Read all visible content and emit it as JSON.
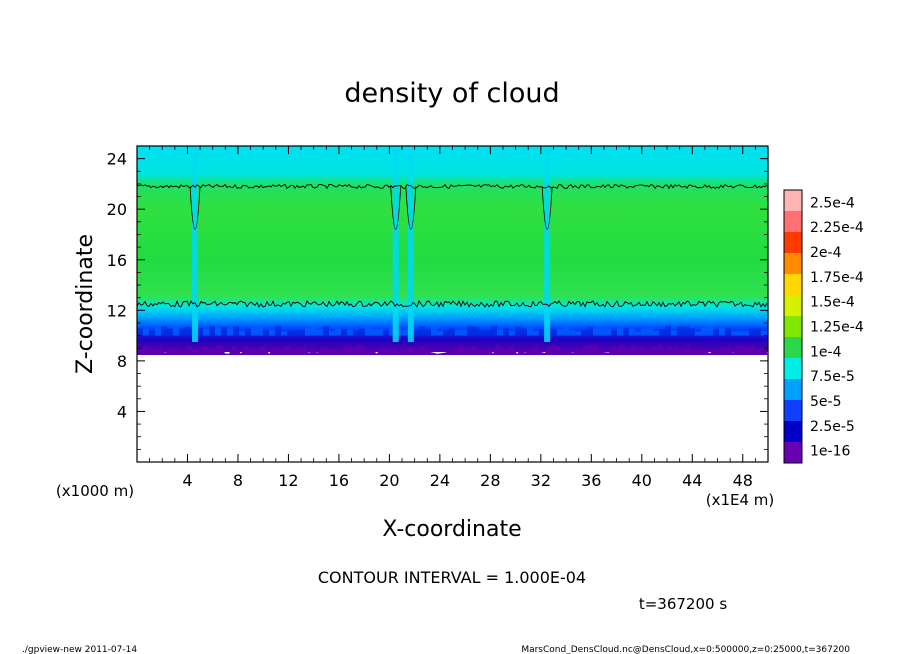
{
  "chart_data": {
    "type": "heatmap",
    "title": "density of cloud",
    "xlabel": "X-coordinate",
    "ylabel": "Z-coordinate",
    "x_unit_label": "(x1E4 m)",
    "y_unit_label": "(x1000 m)",
    "xlim": [
      0,
      50
    ],
    "ylim": [
      0,
      25
    ],
    "x_ticks": [
      4,
      8,
      12,
      16,
      20,
      24,
      28,
      32,
      36,
      40,
      44,
      48
    ],
    "y_ticks": [
      4,
      8,
      12,
      16,
      20,
      24
    ],
    "colorbar": {
      "labels": [
        "2.5e-4",
        "2.25e-4",
        "2e-4",
        "1.75e-4",
        "1.5e-4",
        "1.25e-4",
        "1e-4",
        "7.5e-5",
        "5e-5",
        "2.5e-5",
        "1e-16"
      ],
      "colors": [
        "#ffb4b4",
        "#ff7070",
        "#ff3a00",
        "#ff8c00",
        "#ffd700",
        "#d7f000",
        "#80e800",
        "#2ad84a",
        "#00eee6",
        "#00a0ff",
        "#1040ff",
        "#0000c8",
        "#6a00b4"
      ]
    },
    "cloud_band": {
      "bottom_z": 8.7,
      "top_z": 24.5,
      "base_purple_top_z": 10.0,
      "blue_layer_top_z": 12.3
    },
    "contour_levels": {
      "upper_line_z": 21.8,
      "lower_line_z": 12.5
    },
    "gaps_x": [
      4.6,
      20.5,
      21.7,
      32.5
    ],
    "contour_interval_text": "CONTOUR INTERVAL = 1.000E-04",
    "time_text": "t=367200 s"
  },
  "footer": {
    "left": "./gpview-new   2011-07-14",
    "right": "MarsCond_DensCloud.nc@DensCloud,x=0:500000,z=0:25000,t=367200"
  },
  "colors": {
    "frame": "#000000",
    "background": "#ffffff"
  }
}
